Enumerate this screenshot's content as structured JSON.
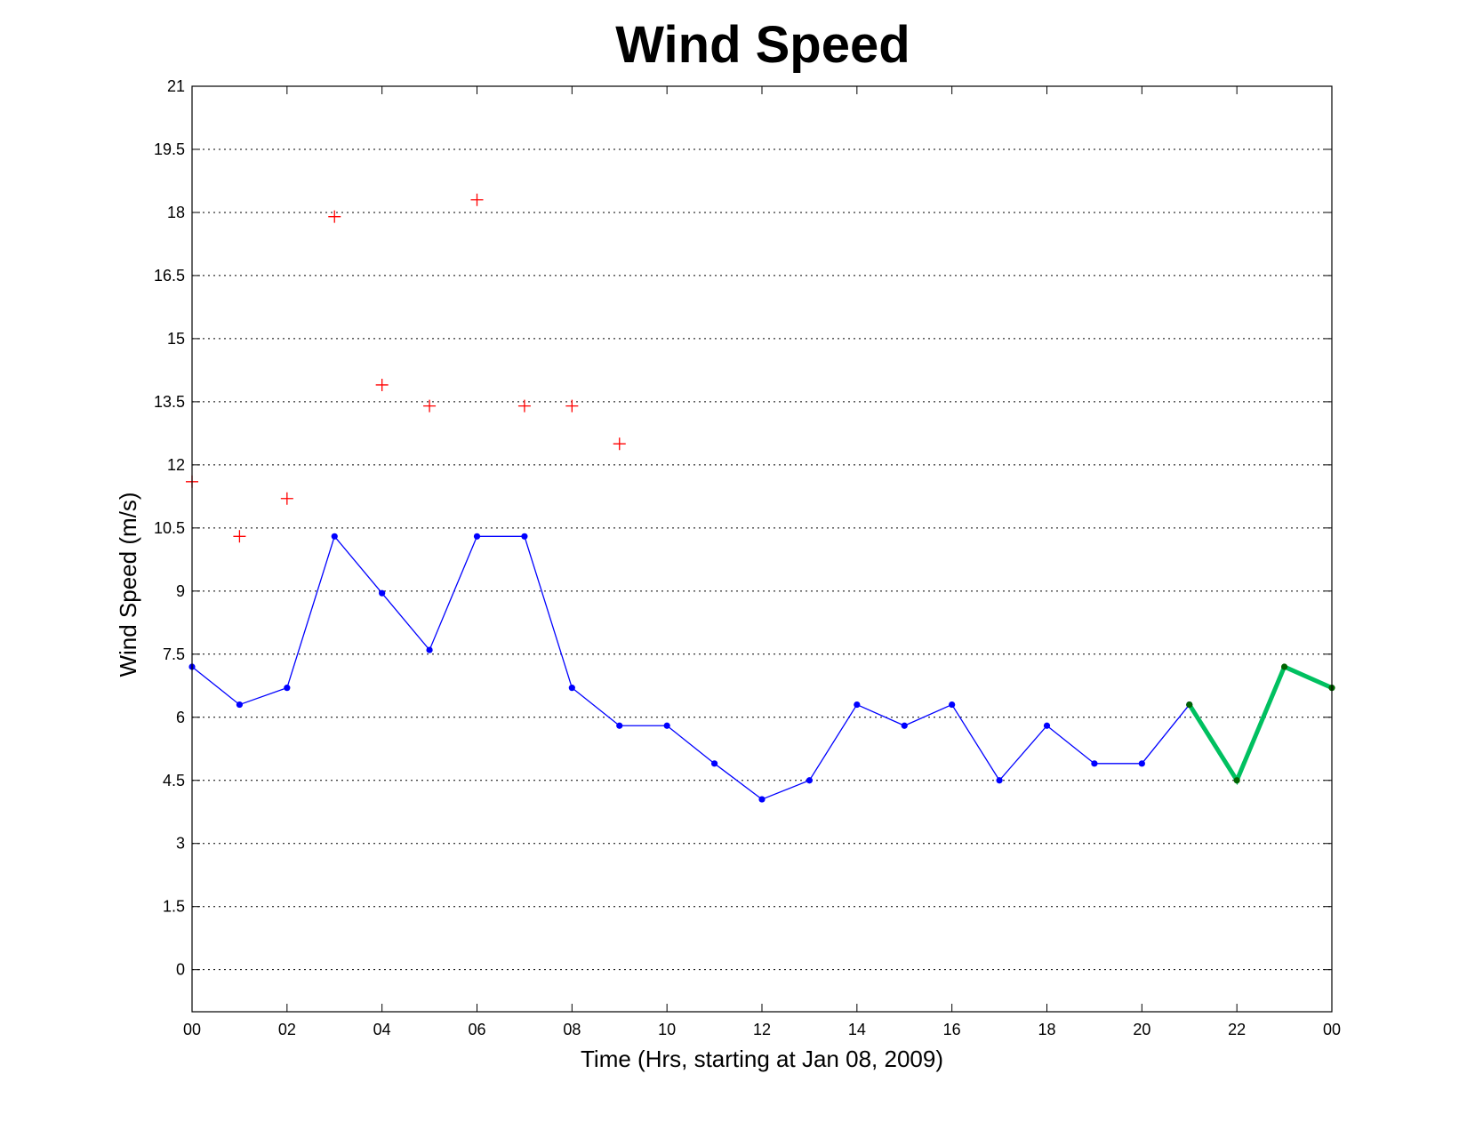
{
  "chart_data": {
    "type": "line",
    "title": "Wind Speed",
    "xlabel": "Time (Hrs, starting at Jan 08, 2009)",
    "ylabel": "Wind Speed (m/s)",
    "xlim": [
      0,
      24
    ],
    "ylim": [
      -1,
      21
    ],
    "x_ticks": [
      "00",
      "02",
      "04",
      "06",
      "08",
      "10",
      "12",
      "14",
      "16",
      "18",
      "20",
      "22",
      "00"
    ],
    "x_tick_values": [
      0,
      2,
      4,
      6,
      8,
      10,
      12,
      14,
      16,
      18,
      20,
      22,
      24
    ],
    "y_ticks": [
      "0",
      "1.5",
      "3",
      "4.5",
      "6",
      "7.5",
      "9",
      "10.5",
      "12",
      "13.5",
      "15",
      "16.5",
      "18",
      "19.5",
      "21"
    ],
    "y_tick_values": [
      0,
      1.5,
      3,
      4.5,
      6,
      7.5,
      9,
      10.5,
      12,
      13.5,
      15,
      16.5,
      18,
      19.5,
      21
    ],
    "grid": "horizontal",
    "legend": "none",
    "series": [
      {
        "marker": "dot",
        "line": "thin",
        "color": "#0000ff",
        "x": [
          0,
          1,
          2,
          3,
          4,
          5,
          6,
          7,
          8,
          9,
          10,
          11,
          12,
          13,
          14,
          15,
          16,
          17,
          18,
          19,
          20,
          21
        ],
        "values": [
          7.2,
          6.3,
          6.7,
          10.3,
          8.95,
          7.6,
          10.3,
          10.3,
          6.7,
          5.8,
          5.8,
          4.9,
          4.05,
          4.5,
          6.3,
          5.8,
          6.3,
          4.5,
          5.8,
          4.9,
          4.9,
          6.3
        ]
      },
      {
        "marker": "plus",
        "line": "none",
        "color": "#ff0000",
        "x": [
          0,
          1,
          2,
          3,
          4,
          5,
          6,
          7,
          8,
          9
        ],
        "values": [
          11.6,
          10.3,
          11.2,
          17.9,
          13.9,
          13.4,
          18.3,
          13.4,
          13.4,
          12.5
        ]
      },
      {
        "marker": "dot",
        "line": "thick",
        "color": "#00c060",
        "marker_color": "#006400",
        "x": [
          21,
          22,
          23,
          24
        ],
        "values": [
          6.3,
          4.5,
          7.2,
          6.7
        ]
      }
    ]
  }
}
